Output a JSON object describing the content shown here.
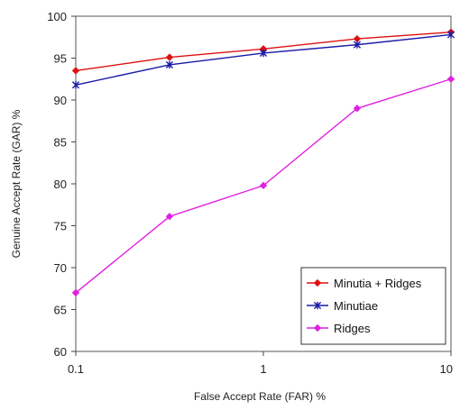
{
  "chart_data": {
    "type": "line",
    "x_scale": "log",
    "x": [
      0.1,
      0.316,
      1,
      3.16,
      10
    ],
    "xlim": [
      0.1,
      10
    ],
    "ylim": [
      60,
      100
    ],
    "xticks": [
      0.1,
      1,
      10
    ],
    "xtick_labels": [
      "0.1",
      "1",
      "10"
    ],
    "yticks": [
      60,
      65,
      70,
      75,
      80,
      85,
      90,
      95,
      100
    ],
    "ytick_labels": [
      "60",
      "65",
      "70",
      "75",
      "80",
      "85",
      "90",
      "95",
      "100"
    ],
    "xlabel": "False Accept Rate (FAR) %",
    "ylabel": "Genuine Accept Rate (GAR) %",
    "grid": false,
    "legend_position": "bottom-right",
    "series": [
      {
        "name": "Minutia + Ridges",
        "values": [
          93.5,
          95.1,
          96.1,
          97.3,
          98.1
        ],
        "color": "#dd1111",
        "marker": "diamond"
      },
      {
        "name": "Minutiae",
        "values": [
          91.8,
          94.2,
          95.6,
          96.6,
          97.8
        ],
        "color": "#1a1aa6",
        "marker": "star"
      },
      {
        "name": "Ridges",
        "values": [
          67.0,
          76.1,
          79.8,
          89.0,
          92.5
        ],
        "color": "#e020e0",
        "marker": "diamond"
      }
    ]
  }
}
